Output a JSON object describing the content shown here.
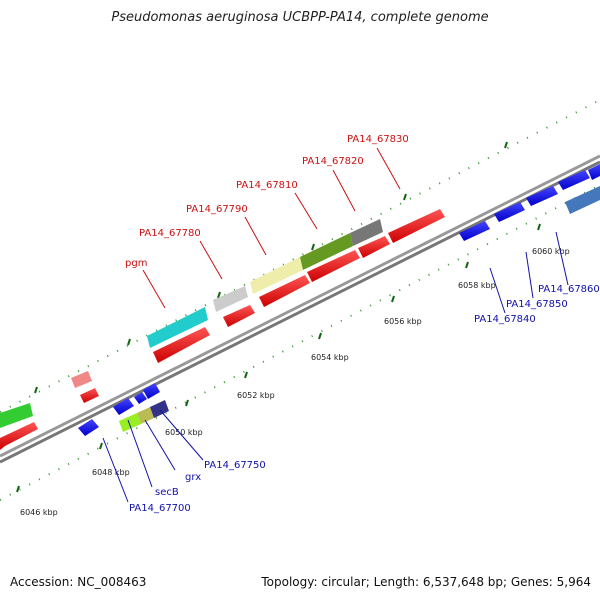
{
  "title": "Pseudomonas aeruginosa UCBPP-PA14, complete genome",
  "footer": {
    "accession": "Accession: NC_008463",
    "summary": "Topology: circular; Length: 6,537,648 bp; Genes: 5,964"
  },
  "scale_ticks": [
    {
      "label": "6046 kbp"
    },
    {
      "label": "6048 kbp"
    },
    {
      "label": "6050 kbp"
    },
    {
      "label": "6052 kbp"
    },
    {
      "label": "6054 kbp"
    },
    {
      "label": "6056 kbp"
    },
    {
      "label": "6058 kbp"
    },
    {
      "label": "6060 kbp"
    }
  ],
  "gene_labels_forward": [
    {
      "label": "pgm"
    },
    {
      "label": "PA14_67780"
    },
    {
      "label": "PA14_67790"
    },
    {
      "label": "PA14_67810"
    },
    {
      "label": "PA14_67820"
    },
    {
      "label": "PA14_67830"
    }
  ],
  "gene_labels_reverse": [
    {
      "label": "PA14_67700"
    },
    {
      "label": "secB"
    },
    {
      "label": "grx"
    },
    {
      "label": "PA14_67750"
    },
    {
      "label": "PA14_67840"
    },
    {
      "label": "PA14_67850"
    },
    {
      "label": "PA14_67860"
    }
  ],
  "colors": {
    "forward_gene": "#ee1111",
    "reverse_gene": "#1111ee",
    "backbone": "#888888",
    "tick_green": "#116611",
    "forward_label": "#cc1111",
    "reverse_label": "#1111aa"
  }
}
